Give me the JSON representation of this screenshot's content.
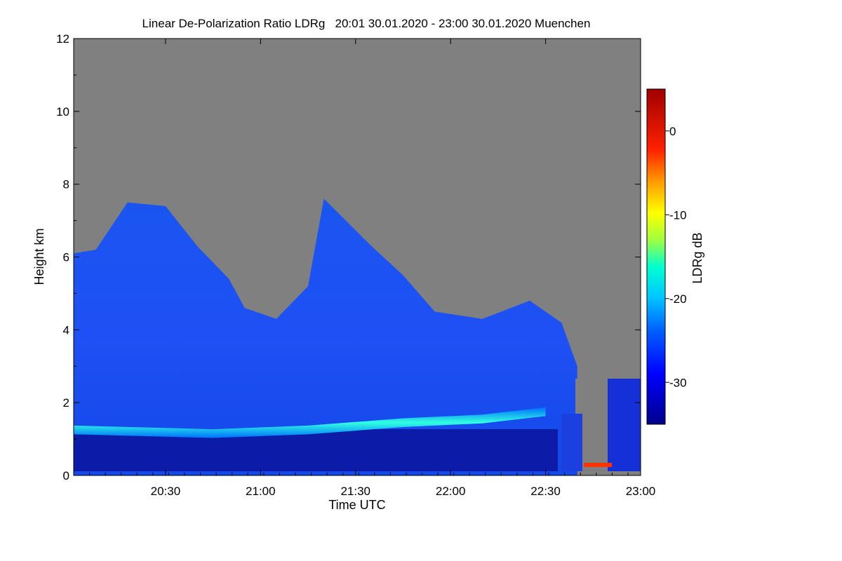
{
  "chart_data": {
    "type": "heatmap",
    "title": "Linear De-Polarization Ratio LDRg   20:01 30.01.2020 - 23:00 30.01.2020 Muenchen",
    "xlabel": "Time UTC",
    "ylabel": "Height km",
    "colorbar_label": "LDRg dB",
    "x_range": [
      "20:01",
      "23:00"
    ],
    "x_ticks": [
      "20:30",
      "21:00",
      "21:30",
      "22:00",
      "22:30",
      "23:00"
    ],
    "ylim": [
      0,
      12
    ],
    "y_ticks": [
      "0",
      "2",
      "4",
      "6",
      "8",
      "10",
      "12"
    ],
    "colorbar_range": [
      -35,
      5
    ],
    "colorbar_ticks": [
      "0",
      "-10",
      "-20",
      "-30"
    ],
    "no_signal_color": "#808080",
    "colormap": [
      "#00008c",
      "#0000ff",
      "#0060ff",
      "#00c8ff",
      "#00ffd0",
      "#a0ff40",
      "#ffff00",
      "#ffa000",
      "#ff2000",
      "#a00000"
    ],
    "cloud_layer": {
      "base_km": [
        [
          "20:01",
          1.0
        ],
        [
          "22:35",
          1.0
        ]
      ],
      "top_km": [
        [
          "20:01",
          6.1
        ],
        [
          "20:08",
          6.2
        ],
        [
          "20:18",
          7.5
        ],
        [
          "20:30",
          7.4
        ],
        [
          "20:40",
          6.3
        ],
        [
          "20:50",
          5.4
        ],
        [
          "20:55",
          4.6
        ],
        [
          "21:05",
          4.3
        ],
        [
          "21:15",
          5.2
        ],
        [
          "21:20",
          7.6
        ],
        [
          "21:35",
          6.3
        ],
        [
          "21:45",
          5.5
        ],
        [
          "21:55",
          4.5
        ],
        [
          "22:10",
          4.3
        ],
        [
          "22:25",
          4.8
        ],
        [
          "22:35",
          4.2
        ],
        [
          "22:40",
          3.0
        ]
      ]
    },
    "boundary_layer_top_km": [
      [
        "20:01",
        1.25
      ],
      [
        "20:45",
        1.15
      ],
      [
        "21:15",
        1.25
      ],
      [
        "21:45",
        1.45
      ],
      [
        "22:10",
        1.55
      ],
      [
        "22:30",
        1.75
      ]
    ]
  }
}
